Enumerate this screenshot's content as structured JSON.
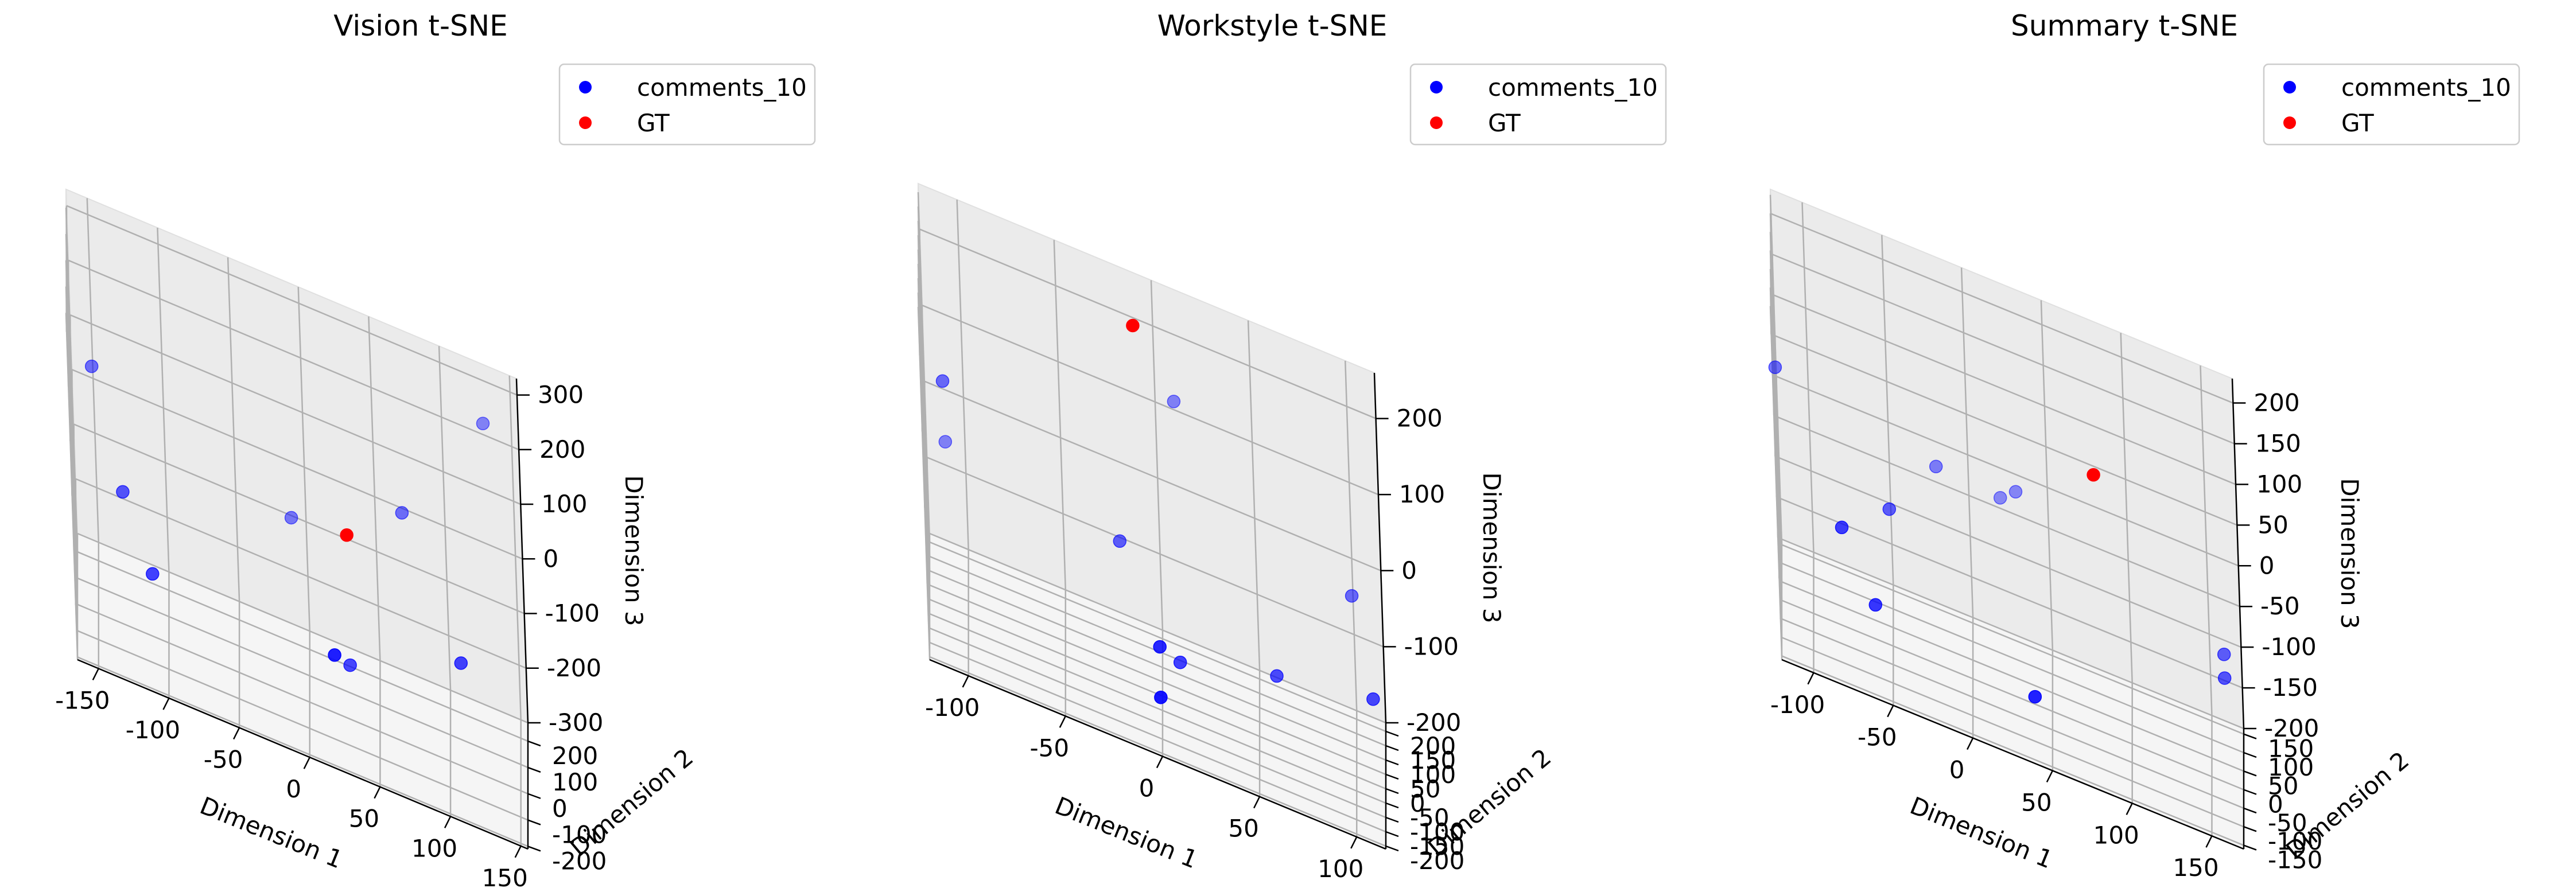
{
  "chart_data": [
    {
      "type": "scatter",
      "projection": "3d",
      "title": "Vision t-SNE",
      "xlabel": "Dimension 1",
      "ylabel": "Dimension 2",
      "zlabel": "Dimension 3",
      "xlim": [
        -165,
        155
      ],
      "ylim": [
        -210,
        270
      ],
      "zlim": [
        -300,
        330
      ],
      "xticks": [
        -150,
        -100,
        -50,
        0,
        50,
        100,
        150
      ],
      "yticks": [
        -200,
        -100,
        0,
        100,
        200
      ],
      "zticks": [
        -300,
        -200,
        -100,
        0,
        100,
        200,
        300
      ],
      "grid": true,
      "legend_position": "top-right",
      "series": [
        {
          "name": "comments_10",
          "color": "#0000ff",
          "points": [
            {
              "x": -150,
              "y": 150,
              "z": 80
            },
            {
              "x": 130,
              "y": 230,
              "z": 240
            },
            {
              "x": 70,
              "y": 150,
              "z": 50
            },
            {
              "x": -10,
              "y": 180,
              "z": -60
            },
            {
              "x": -130,
              "y": 50,
              "z": -80
            },
            {
              "x": 30,
              "y": 0,
              "z": -200
            },
            {
              "x": -110,
              "y": -30,
              "z": -170
            },
            {
              "x": 110,
              "y": -20,
              "z": -100
            },
            {
              "x": 20,
              "y": -150,
              "z": -120
            }
          ]
        },
        {
          "name": "GT",
          "color": "#ff0000",
          "points": [
            {
              "x": 30,
              "y": 100,
              "z": -10
            }
          ]
        }
      ]
    },
    {
      "type": "scatter",
      "projection": "3d",
      "title": "Workstyle t-SNE",
      "xlabel": "Dimension 1",
      "ylabel": "Dimension 2",
      "zlabel": "Dimension 3",
      "xlim": [
        -120,
        115
      ],
      "ylim": [
        -210,
        230
      ],
      "zlim": [
        -200,
        260
      ],
      "xticks": [
        -100,
        -50,
        0,
        50,
        100
      ],
      "yticks": [
        -200,
        -150,
        -100,
        -50,
        0,
        50,
        100,
        150,
        200
      ],
      "zticks": [
        -200,
        -100,
        0,
        100,
        200
      ],
      "grid": true,
      "legend_position": "top-right",
      "series": [
        {
          "name": "comments_10",
          "color": "#0000ff",
          "points": [
            {
              "x": -110,
              "y": 100,
              "z": 60
            },
            {
              "x": 10,
              "y": 180,
              "z": 130
            },
            {
              "x": -110,
              "y": 180,
              "z": -50
            },
            {
              "x": 100,
              "y": 100,
              "z": 0
            },
            {
              "x": -20,
              "y": 60,
              "z": -40
            },
            {
              "x": 110,
              "y": -20,
              "z": -80
            },
            {
              "x": 0,
              "y": -120,
              "z": -90
            },
            {
              "x": 60,
              "y": 0,
              "z": -110
            },
            {
              "x": 10,
              "y": -40,
              "z": -130
            },
            {
              "x": 0,
              "y": -190,
              "z": -130
            }
          ]
        },
        {
          "name": "GT",
          "color": "#ff0000",
          "points": [
            {
              "x": -10,
              "y": 150,
              "z": 220
            }
          ]
        }
      ]
    },
    {
      "type": "scatter",
      "projection": "3d",
      "title": "Summary t-SNE",
      "xlabel": "Dimension 1",
      "ylabel": "Dimension 2",
      "zlabel": "Dimension 3",
      "xlim": [
        -120,
        170
      ],
      "ylim": [
        -160,
        165
      ],
      "zlim": [
        -200,
        230
      ],
      "xticks": [
        -100,
        -50,
        0,
        50,
        100,
        150
      ],
      "yticks": [
        -150,
        -100,
        -50,
        0,
        50,
        100,
        150
      ],
      "zticks": [
        -200,
        -150,
        -100,
        -50,
        0,
        50,
        100,
        150,
        200
      ],
      "grid": true,
      "legend_position": "top-right",
      "series": [
        {
          "name": "comments_10",
          "color": "#0000ff",
          "points": [
            {
              "x": -120,
              "y": 80,
              "z": 50
            },
            {
              "x": -20,
              "y": 120,
              "z": -10
            },
            {
              "x": -50,
              "y": 40,
              "z": -50
            },
            {
              "x": 20,
              "y": 150,
              "z": -30
            },
            {
              "x": 30,
              "y": 140,
              "z": -10
            },
            {
              "x": -80,
              "y": -40,
              "z": -60
            },
            {
              "x": -60,
              "y": -60,
              "z": -130
            },
            {
              "x": 160,
              "y": 40,
              "z": -60
            },
            {
              "x": 160,
              "y": 20,
              "z": -80
            },
            {
              "x": 40,
              "y": -110,
              "z": -140
            }
          ]
        },
        {
          "name": "GT",
          "color": "#ff0000",
          "points": [
            {
              "x": 80,
              "y": 120,
              "z": 60
            }
          ]
        }
      ]
    }
  ]
}
